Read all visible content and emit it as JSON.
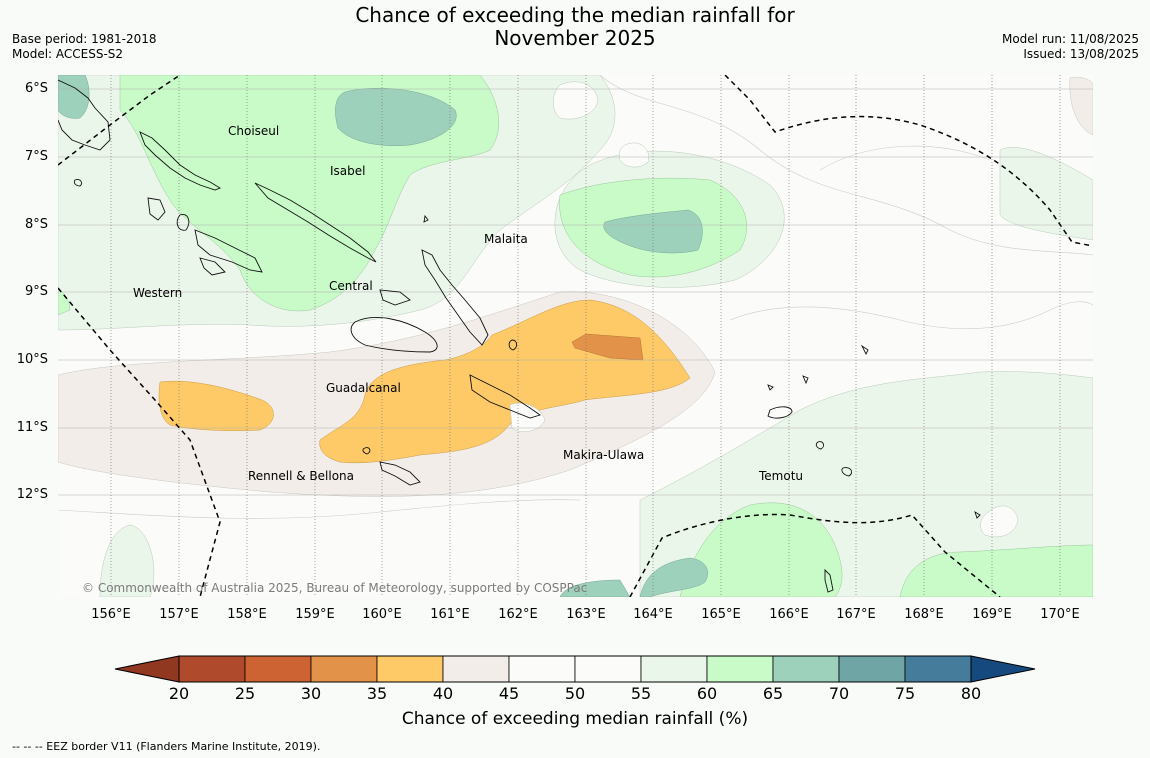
{
  "header": {
    "title_line1": "Chance of exceeding the median rainfall for",
    "title_line2": "November 2025",
    "base_period": "Base period: 1981-2018",
    "model": "Model: ACCESS-S2",
    "model_run": "Model run: 11/08/2025",
    "issued": "Issued: 13/08/2025"
  },
  "map": {
    "latitude_labels": [
      "6°S",
      "7°S",
      "8°S",
      "9°S",
      "10°S",
      "11°S",
      "12°S"
    ],
    "longitude_labels": [
      "156°E",
      "157°E",
      "158°E",
      "159°E",
      "160°E",
      "161°E",
      "162°E",
      "163°E",
      "164°E",
      "165°E",
      "166°E",
      "167°E",
      "168°E",
      "169°E",
      "170°E"
    ],
    "place_labels": {
      "choiseul": "Choiseul",
      "isabel": "Isabel",
      "malaita": "Malaita",
      "western": "Western",
      "central": "Central",
      "guadalcanal": "Guadalcanal",
      "makira_ulawa": "Makira-Ulawa",
      "temotu": "Temotu",
      "rennell_bellona": "Rennell & Bellona"
    },
    "copyright": "© Commonwealth of Australia 2025, Bureau of Meteorology, supported by COSPPac"
  },
  "colorbar": {
    "ticks": [
      "20",
      "25",
      "30",
      "35",
      "40",
      "45",
      "50",
      "55",
      "60",
      "65",
      "70",
      "75",
      "80"
    ],
    "colors": [
      "#b04a2c",
      "#cd6333",
      "#e39349",
      "#fdca67",
      "#f2ede8",
      "#fbfcf9",
      "#fbfcf9",
      "#ebf6ea",
      "#c9fbc9",
      "#9ed1bb",
      "#70a5a6",
      "#457b9b"
    ],
    "under_color": "#913821",
    "over_color": "#164a7f",
    "label": "Chance of exceeding median rainfall (%)"
  },
  "legend": {
    "eez_note": "--  --  -- EEZ border V11 (Flanders Marine Institute, 2019)."
  }
}
